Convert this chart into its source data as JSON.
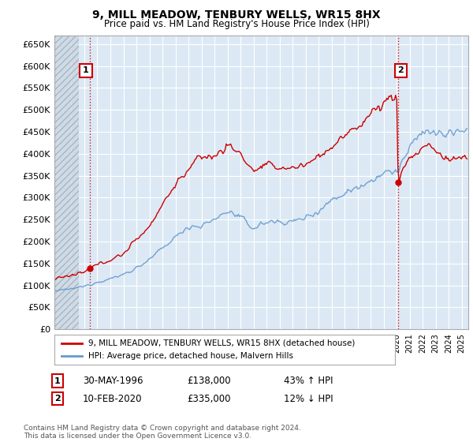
{
  "title": "9, MILL MEADOW, TENBURY WELLS, WR15 8HX",
  "subtitle": "Price paid vs. HM Land Registry's House Price Index (HPI)",
  "ylabel_ticks": [
    "£0",
    "£50K",
    "£100K",
    "£150K",
    "£200K",
    "£250K",
    "£300K",
    "£350K",
    "£400K",
    "£450K",
    "£500K",
    "£550K",
    "£600K",
    "£650K"
  ],
  "ytick_values": [
    0,
    50000,
    100000,
    150000,
    200000,
    250000,
    300000,
    350000,
    400000,
    450000,
    500000,
    550000,
    600000,
    650000
  ],
  "ylim": [
    0,
    670000
  ],
  "xlim_start": 1993.7,
  "xlim_end": 2025.5,
  "sale1_date": 1996.41,
  "sale1_price": 138000,
  "sale1_label": "1",
  "sale2_date": 2020.11,
  "sale2_price": 335000,
  "sale2_label": "2",
  "property_color": "#cc0000",
  "hpi_color": "#6699cc",
  "legend_property": "9, MILL MEADOW, TENBURY WELLS, WR15 8HX (detached house)",
  "legend_hpi": "HPI: Average price, detached house, Malvern Hills",
  "annotation1_date": "30-MAY-1996",
  "annotation1_price": "£138,000",
  "annotation1_hpi": "43% ↑ HPI",
  "annotation2_date": "10-FEB-2020",
  "annotation2_price": "£335,000",
  "annotation2_hpi": "12% ↓ HPI",
  "footer": "Contains HM Land Registry data © Crown copyright and database right 2024.\nThis data is licensed under the Open Government Licence v3.0.",
  "plot_bg_color": "#dce9f5",
  "fig_bg_color": "#ffffff",
  "grid_color": "#ffffff",
  "hatch_area_end": 1996.0
}
